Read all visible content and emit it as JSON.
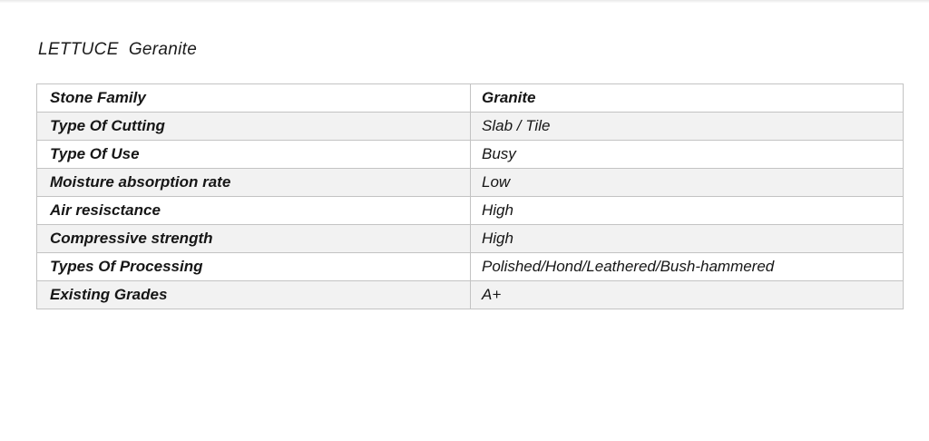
{
  "page": {
    "title": "LETTUCE  Geranite"
  },
  "table": {
    "stripe_color": "#f2f2f2",
    "border_color": "#c3c3c3",
    "rows": [
      {
        "label": "Stone Family",
        "value": "Granite"
      },
      {
        "label": "Type Of Cutting",
        "value": "Slab / Tile"
      },
      {
        "label": "Type Of Use",
        "value": "Busy"
      },
      {
        "label": "Moisture absorption rate",
        "value": "Low"
      },
      {
        "label": "Air resisctance",
        "value": "High"
      },
      {
        "label": "Compressive strength",
        "value": "High"
      },
      {
        "label": "Types Of Processing",
        "value": "Polished/Hond/Leathered/Bush-hammered"
      },
      {
        "label": "Existing Grades",
        "value": "A+"
      }
    ]
  }
}
